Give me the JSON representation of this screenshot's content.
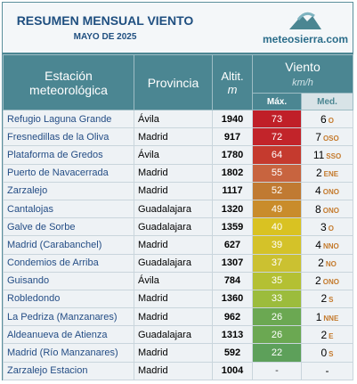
{
  "header": {
    "title": "RESUMEN MENSUAL VIENTO",
    "subtitle": "MAYO DE 2025",
    "logo": "meteosierra.com"
  },
  "table": {
    "columns": {
      "station": "Estación meteorológica",
      "province": "Provincia",
      "altitude": "Altit.",
      "altitude_unit": "m",
      "wind": "Viento",
      "wind_unit": "km/h",
      "max": "Máx.",
      "med": "Med."
    },
    "rows": [
      {
        "station": "Refugio Laguna Grande",
        "province": "Ávila",
        "altitude": 1940,
        "max": 73,
        "max_color": "#c01f28",
        "med": 6,
        "dir": "O"
      },
      {
        "station": "Fresnedillas de la Oliva",
        "province": "Madrid",
        "altitude": 917,
        "max": 72,
        "max_color": "#c2242a",
        "med": 7,
        "dir": "OSO"
      },
      {
        "station": "Plataforma de Gredos",
        "province": "Ávila",
        "altitude": 1780,
        "max": 64,
        "max_color": "#c53a2e",
        "med": 11,
        "dir": "SSO"
      },
      {
        "station": "Puerto de Navacerrada",
        "province": "Madrid",
        "altitude": 1802,
        "max": 55,
        "max_color": "#c8643f",
        "med": 2,
        "dir": "ENE"
      },
      {
        "station": "Zarzalejo",
        "province": "Madrid",
        "altitude": 1117,
        "max": 52,
        "max_color": "#c07a32",
        "med": 4,
        "dir": "ONO"
      },
      {
        "station": "Cantalojas",
        "province": "Guadalajara",
        "altitude": 1320,
        "max": 49,
        "max_color": "#c98c2b",
        "med": 8,
        "dir": "ONO"
      },
      {
        "station": "Galve de Sorbe",
        "province": "Guadalajara",
        "altitude": 1359,
        "max": 40,
        "max_color": "#d9c222",
        "med": 3,
        "dir": "O"
      },
      {
        "station": "Madrid (Carabanchel)",
        "province": "Madrid",
        "altitude": 627,
        "max": 39,
        "max_color": "#d4c229",
        "med": 4,
        "dir": "NNO"
      },
      {
        "station": "Condemios de Arriba",
        "province": "Guadalajara",
        "altitude": 1307,
        "max": 37,
        "max_color": "#cbc131",
        "med": 2,
        "dir": "NO"
      },
      {
        "station": "Guisando",
        "province": "Ávila",
        "altitude": 784,
        "max": 35,
        "max_color": "#b4c033",
        "med": 2,
        "dir": "ONO"
      },
      {
        "station": "Robledondo",
        "province": "Madrid",
        "altitude": 1360,
        "max": 33,
        "max_color": "#9cbc3c",
        "med": 2,
        "dir": "S"
      },
      {
        "station": "La Pedriza (Manzanares)",
        "province": "Madrid",
        "altitude": 962,
        "max": 26,
        "max_color": "#6ba852",
        "med": 1,
        "dir": "NNE"
      },
      {
        "station": "Aldeanueva de Atienza",
        "province": "Guadalajara",
        "altitude": 1313,
        "max": 26,
        "max_color": "#6ba852",
        "med": 2,
        "dir": "E"
      },
      {
        "station": "Madrid (Río Manzanares)",
        "province": "Madrid",
        "altitude": 592,
        "max": 22,
        "max_color": "#5da05a",
        "med": 0,
        "dir": "S"
      },
      {
        "station": "Zarzalejo Estacion",
        "province": "Madrid",
        "altitude": 1004,
        "max": "-",
        "med": "-"
      }
    ]
  }
}
